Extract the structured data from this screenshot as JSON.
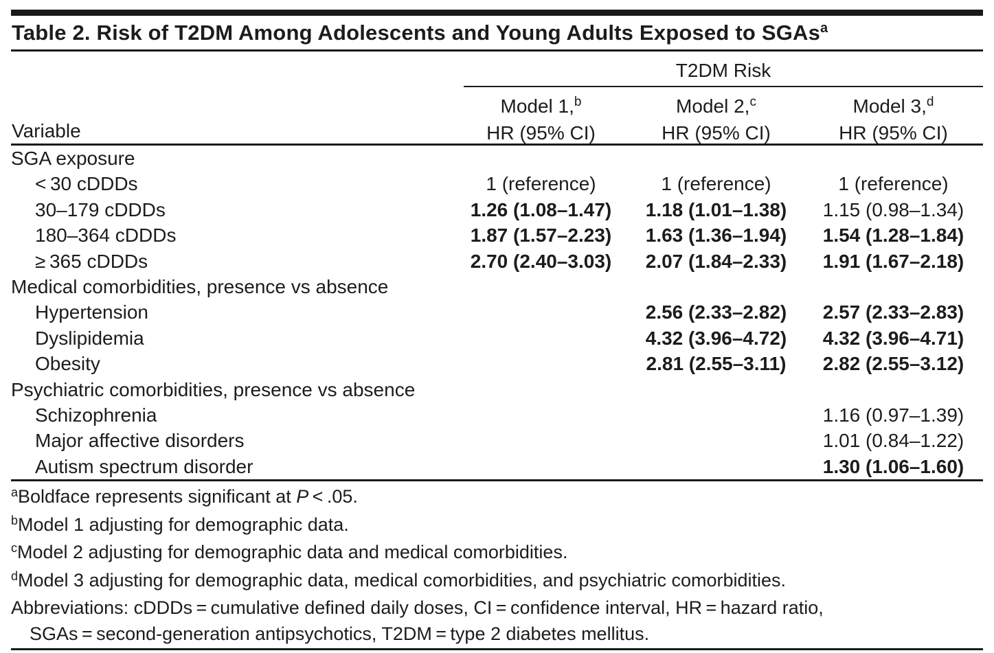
{
  "colors": {
    "ink": "#1c1c1c",
    "rule": "#1a1a1a"
  },
  "title": {
    "text": "Table 2. Risk of T2DM Among Adolescents and Young Adults Exposed to SGAs",
    "sup": "a"
  },
  "header": {
    "group_label": "T2DM Risk",
    "variable_label": "Variable",
    "columns": [
      {
        "label": "Model 1,",
        "sup": "b",
        "sub_label": "HR (95% CI)"
      },
      {
        "label": "Model 2,",
        "sup": "c",
        "sub_label": "HR (95% CI)"
      },
      {
        "label": "Model 3,",
        "sup": "d",
        "sub_label": "HR (95% CI)"
      }
    ]
  },
  "table": {
    "rows": [
      {
        "label": "SGA exposure",
        "indent": false,
        "values": [
          "",
          "",
          ""
        ],
        "bold": [
          false,
          false,
          false
        ]
      },
      {
        "label": "< 30 cDDDs",
        "indent": true,
        "values": [
          "1 (reference)",
          "1 (reference)",
          "1 (reference)"
        ],
        "bold": [
          false,
          false,
          false
        ]
      },
      {
        "label": "30–179 cDDDs",
        "indent": true,
        "values": [
          "1.26 (1.08–1.47)",
          "1.18 (1.01–1.38)",
          "1.15 (0.98–1.34)"
        ],
        "bold": [
          true,
          true,
          false
        ]
      },
      {
        "label": "180–364 cDDDs",
        "indent": true,
        "values": [
          "1.87 (1.57–2.23)",
          "1.63 (1.36–1.94)",
          "1.54 (1.28–1.84)"
        ],
        "bold": [
          true,
          true,
          true
        ]
      },
      {
        "label": "≥ 365 cDDDs",
        "indent": true,
        "values": [
          "2.70 (2.40–3.03)",
          "2.07 (1.84–2.33)",
          "1.91 (1.67–2.18)"
        ],
        "bold": [
          true,
          true,
          true
        ]
      },
      {
        "label": "Medical comorbidities, presence vs absence",
        "indent": false,
        "values": [
          "",
          "",
          ""
        ],
        "bold": [
          false,
          false,
          false
        ]
      },
      {
        "label": "Hypertension",
        "indent": true,
        "values": [
          "",
          "2.56 (2.33–2.82)",
          "2.57 (2.33–2.83)"
        ],
        "bold": [
          false,
          true,
          true
        ]
      },
      {
        "label": "Dyslipidemia",
        "indent": true,
        "values": [
          "",
          "4.32 (3.96–4.72)",
          "4.32 (3.96–4.71)"
        ],
        "bold": [
          false,
          true,
          true
        ]
      },
      {
        "label": "Obesity",
        "indent": true,
        "values": [
          "",
          "2.81 (2.55–3.11)",
          "2.82 (2.55–3.12)"
        ],
        "bold": [
          false,
          true,
          true
        ]
      },
      {
        "label": "Psychiatric comorbidities, presence vs absence",
        "indent": false,
        "values": [
          "",
          "",
          ""
        ],
        "bold": [
          false,
          false,
          false
        ]
      },
      {
        "label": "Schizophrenia",
        "indent": true,
        "values": [
          "",
          "",
          "1.16 (0.97–1.39)"
        ],
        "bold": [
          false,
          false,
          false
        ]
      },
      {
        "label": "Major affective disorders",
        "indent": true,
        "values": [
          "",
          "",
          "1.01 (0.84–1.22)"
        ],
        "bold": [
          false,
          false,
          false
        ]
      },
      {
        "label": "Autism spectrum disorder",
        "indent": true,
        "values": [
          "",
          "",
          "1.30 (1.06–1.60)"
        ],
        "bold": [
          false,
          false,
          true
        ]
      }
    ]
  },
  "footnotes": [
    {
      "sup": "a",
      "pre": "Boldface represents significant at ",
      "italic": "P",
      "post": " < .05."
    },
    {
      "sup": "b",
      "text": "Model 1 adjusting for demographic data."
    },
    {
      "sup": "c",
      "text": "Model 2 adjusting for demographic data and medical comorbidities."
    },
    {
      "sup": "d",
      "text": "Model 3 adjusting for demographic data, medical comorbidities, and psychiatric comorbidities."
    }
  ],
  "abbreviations": {
    "line1": "Abbreviations: cDDDs = cumulative defined daily doses, CI = confidence interval, HR = hazard ratio,",
    "line2": "SGAs = second-generation antipsychotics, T2DM = type 2 diabetes mellitus."
  }
}
